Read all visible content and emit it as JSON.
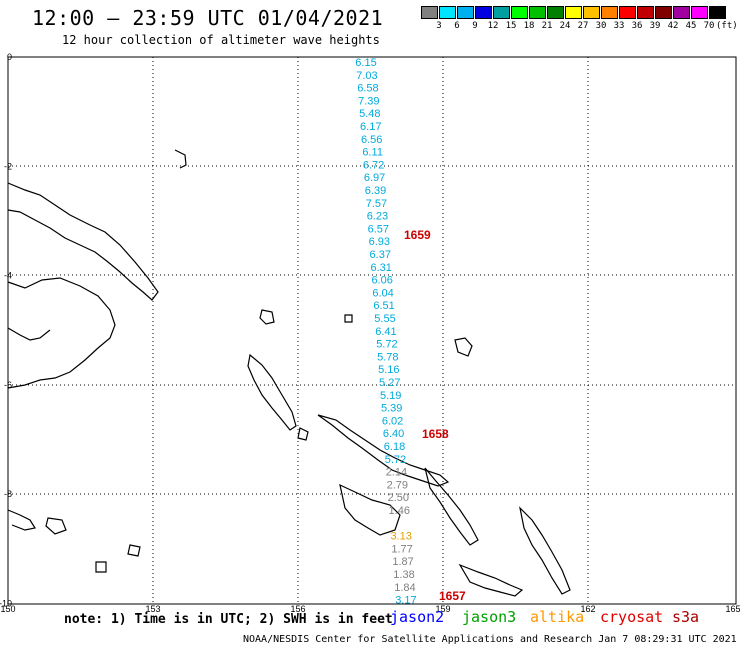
{
  "header": {
    "title": "12:00 – 23:59 UTC 01/04/2021",
    "subtitle": "12 hour collection of altimeter wave heights"
  },
  "legend": {
    "unit": "(ft)",
    "ticks": [
      "3",
      "6",
      "9",
      "12",
      "15",
      "18",
      "21",
      "24",
      "27",
      "30",
      "33",
      "36",
      "39",
      "42",
      "45",
      "70"
    ],
    "colors": [
      "#808080",
      "#00e5ff",
      "#00b0f0",
      "#0000e0",
      "#00a0a0",
      "#00ff00",
      "#00c000",
      "#008000",
      "#ffff00",
      "#ffc000",
      "#ff8000",
      "#ff0000",
      "#c00000",
      "#800000",
      "#a000a0",
      "#ff00ff",
      "#000000"
    ]
  },
  "axes": {
    "x_labels": [
      "150",
      "153",
      "156",
      "159",
      "162",
      "165"
    ],
    "y_labels": [
      "0",
      "-2",
      "-4",
      "-6",
      "-8",
      "-10"
    ]
  },
  "track": {
    "color_cyan": "#00aadd",
    "color_gray": "#808080",
    "color_gold": "#e0a000",
    "values": [
      {
        "v": "6.15",
        "c": "cyan"
      },
      {
        "v": "7.03",
        "c": "cyan"
      },
      {
        "v": "6.58",
        "c": "cyan"
      },
      {
        "v": "7.39",
        "c": "cyan"
      },
      {
        "v": "5.48",
        "c": "cyan"
      },
      {
        "v": "6.17",
        "c": "cyan"
      },
      {
        "v": "6.56",
        "c": "cyan"
      },
      {
        "v": "6.11",
        "c": "cyan"
      },
      {
        "v": "6.72",
        "c": "cyan"
      },
      {
        "v": "6.97",
        "c": "cyan"
      },
      {
        "v": "6.39",
        "c": "cyan"
      },
      {
        "v": "7.57",
        "c": "cyan"
      },
      {
        "v": "6.23",
        "c": "cyan"
      },
      {
        "v": "6.57",
        "c": "cyan"
      },
      {
        "v": "6.93",
        "c": "cyan"
      },
      {
        "v": "6.37",
        "c": "cyan"
      },
      {
        "v": "6.31",
        "c": "cyan"
      },
      {
        "v": "6.06",
        "c": "cyan"
      },
      {
        "v": "6.04",
        "c": "cyan"
      },
      {
        "v": "6.51",
        "c": "cyan"
      },
      {
        "v": "5.55",
        "c": "cyan"
      },
      {
        "v": "6.41",
        "c": "cyan"
      },
      {
        "v": "5.72",
        "c": "cyan"
      },
      {
        "v": "5.78",
        "c": "cyan"
      },
      {
        "v": "5.16",
        "c": "cyan"
      },
      {
        "v": "5.27",
        "c": "cyan"
      },
      {
        "v": "5.19",
        "c": "cyan"
      },
      {
        "v": "5.39",
        "c": "cyan"
      },
      {
        "v": "6.02",
        "c": "cyan"
      },
      {
        "v": "6.40",
        "c": "cyan"
      },
      {
        "v": "6.18",
        "c": "cyan"
      },
      {
        "v": "5.72",
        "c": "cyan"
      },
      {
        "v": "2.14",
        "c": "gray"
      },
      {
        "v": "2.79",
        "c": "gray"
      },
      {
        "v": "2.50",
        "c": "gray"
      },
      {
        "v": "1.46",
        "c": "gray"
      },
      {
        "v": "",
        "c": "gray"
      },
      {
        "v": "3.13",
        "c": "gold"
      },
      {
        "v": "1.77",
        "c": "gray"
      },
      {
        "v": "1.87",
        "c": "gray"
      },
      {
        "v": "1.38",
        "c": "gray"
      },
      {
        "v": "1.84",
        "c": "gray"
      },
      {
        "v": "3.17",
        "c": "cyan"
      }
    ]
  },
  "times": [
    {
      "label": "1659"
    },
    {
      "label": "1658"
    },
    {
      "label": "1657"
    }
  ],
  "note": "note: 1) Time is in UTC; 2) SWH is in feet",
  "satellites": [
    {
      "name": "jason2",
      "color": "#0000ff"
    },
    {
      "name": "jason3",
      "color": "#00a000"
    },
    {
      "name": "altika",
      "color": "#ff9900"
    },
    {
      "name": "cryosat",
      "color": "#e00000"
    },
    {
      "name": "s3a",
      "color": "#aa0000"
    }
  ],
  "footer": "NOAA/NESDIS Center for Satellite Applications and Research   Jan  7 08:29:31 UTC 2021"
}
